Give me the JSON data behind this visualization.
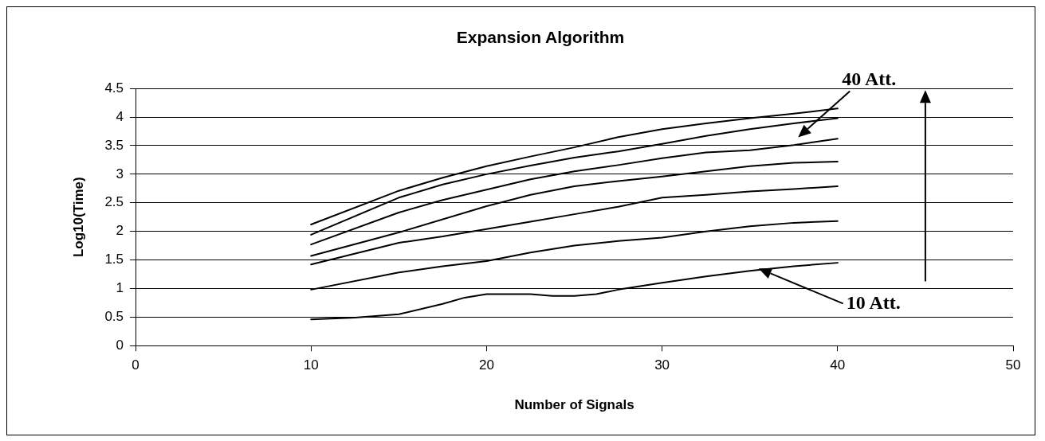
{
  "chart_data": {
    "type": "line",
    "title": "Expansion Algorithm",
    "xlabel": "Number of Signals",
    "ylabel": "Log10(Time)",
    "series": [
      {
        "color": "#000000",
        "x": [
          10,
          15,
          17.5,
          20,
          22.5,
          25,
          27.5,
          30,
          32.5,
          35,
          37.5,
          40
        ],
        "values": [
          2.12,
          2.71,
          2.94,
          3.14,
          3.31,
          3.47,
          3.65,
          3.79,
          3.89,
          3.98,
          4.06,
          4.15
        ]
      },
      {
        "color": "#000000",
        "x": [
          10,
          15,
          17.5,
          20,
          22.5,
          25,
          27.5,
          30,
          32.5,
          35,
          37.5,
          40
        ],
        "values": [
          1.94,
          2.59,
          2.82,
          3.0,
          3.15,
          3.29,
          3.4,
          3.53,
          3.67,
          3.79,
          3.89,
          3.98
        ]
      },
      {
        "color": "#000000",
        "x": [
          10,
          15,
          17.5,
          20,
          22.5,
          25,
          27.5,
          30,
          32.5,
          35,
          37.5,
          40
        ],
        "values": [
          1.77,
          2.33,
          2.55,
          2.73,
          2.91,
          3.05,
          3.16,
          3.28,
          3.38,
          3.42,
          3.51,
          3.62
        ]
      },
      {
        "color": "#000000",
        "x": [
          10,
          15,
          20,
          22.5,
          25,
          27.5,
          30,
          32.5,
          35,
          37.5,
          40
        ],
        "values": [
          1.57,
          1.98,
          2.44,
          2.64,
          2.79,
          2.88,
          2.96,
          3.05,
          3.14,
          3.2,
          3.22
        ]
      },
      {
        "color": "#000000",
        "x": [
          10,
          15,
          17.5,
          20,
          22.5,
          25,
          27.5,
          30,
          32.5,
          35,
          37.5,
          40
        ],
        "values": [
          1.42,
          1.8,
          1.91,
          2.04,
          2.17,
          2.3,
          2.43,
          2.59,
          2.64,
          2.7,
          2.74,
          2.79
        ]
      },
      {
        "color": "#000000",
        "x": [
          10,
          15,
          17.5,
          20,
          22.5,
          25,
          27.5,
          30,
          32.5,
          35,
          37.5,
          40
        ],
        "values": [
          0.98,
          1.28,
          1.39,
          1.48,
          1.63,
          1.75,
          1.83,
          1.89,
          2.0,
          2.09,
          2.15,
          2.18
        ]
      },
      {
        "color": "#000000",
        "x": [
          10,
          12.5,
          15,
          17.5,
          18.75,
          20,
          22.5,
          23.75,
          25,
          26.25,
          27.5,
          30,
          32.5,
          35,
          37.5,
          40
        ],
        "values": [
          0.46,
          0.49,
          0.55,
          0.73,
          0.84,
          0.9,
          0.9,
          0.87,
          0.87,
          0.9,
          0.98,
          1.1,
          1.21,
          1.31,
          1.39,
          1.45
        ]
      }
    ],
    "annotations": [
      "40 Att.",
      "10 Att."
    ],
    "xlim": [
      0,
      50
    ],
    "xticks": [
      0,
      10,
      20,
      30,
      40,
      50
    ],
    "ylim": [
      0,
      4.5
    ],
    "yticks": [
      0,
      0.5,
      1,
      1.5,
      2,
      2.5,
      3,
      3.5,
      4,
      4.5
    ],
    "grid": "y",
    "legend": false,
    "marker": "none",
    "line_style": "solid"
  }
}
